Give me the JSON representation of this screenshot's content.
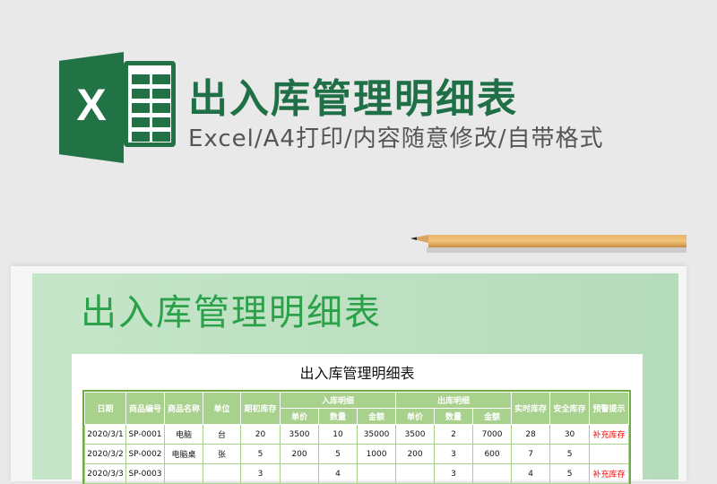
{
  "header": {
    "headline": "出入库管理明细表",
    "subline": "Excel/A4打印/内容随意修改/自带格式",
    "logo_letter": "X"
  },
  "colors": {
    "excel_green": "#217346",
    "title_green": "#2ba14a",
    "table_header": "#a9d18e",
    "warning": "#ff0000"
  },
  "preview": {
    "big_title": "出入库管理明细表",
    "sheet_title": "出入库管理明细表"
  },
  "table": {
    "headers": {
      "date": "日期",
      "code": "商品编号",
      "name": "商品名称",
      "unit": "单位",
      "opening": "期初库存",
      "in_group": "入库明细",
      "out_group": "出库明细",
      "realtime": "实时库存",
      "safety": "安全库存",
      "alert": "预警提示",
      "price": "单价",
      "qty": "数量",
      "amount": "金额"
    },
    "rows": [
      [
        "2020/3/1",
        "SP-0001",
        "电脑",
        "台",
        "20",
        "3500",
        "10",
        "35000",
        "3500",
        "2",
        "7000",
        "28",
        "30",
        "补充库存"
      ],
      [
        "2020/3/2",
        "SP-0002",
        "电脑桌",
        "张",
        "5",
        "200",
        "5",
        "1000",
        "200",
        "3",
        "600",
        "7",
        "5",
        ""
      ],
      [
        "2020/3/3",
        "SP-0003",
        "",
        "",
        "3",
        "",
        "4",
        "",
        "",
        "3",
        "",
        "4",
        "5",
        "补充库存"
      ]
    ]
  }
}
